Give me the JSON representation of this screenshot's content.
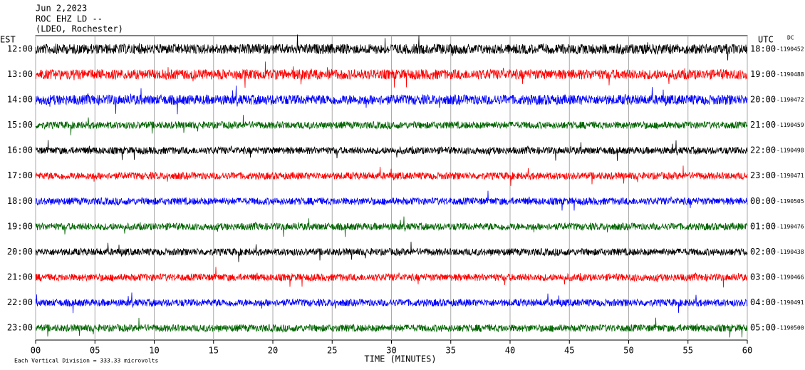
{
  "chart_data": {
    "type": "helicorder",
    "title": "Jun 2,2023",
    "subtitle": "ROC EHZ LD --",
    "station": "(LDEO, Rochester)",
    "left_axis_label": "EST",
    "right_axis_label": "UTC",
    "offset_label": "DC",
    "xlabel": "TIME (MINUTES)",
    "footnote": "Each Vertical Division =  333.33 microvolts",
    "xlim": [
      0,
      60
    ],
    "xticks": [
      {
        "value": 0,
        "label": "00"
      },
      {
        "value": 5,
        "label": "05"
      },
      {
        "value": 10,
        "label": "10"
      },
      {
        "value": 15,
        "label": "15"
      },
      {
        "value": 20,
        "label": "20"
      },
      {
        "value": 25,
        "label": "25"
      },
      {
        "value": 30,
        "label": "30"
      },
      {
        "value": 35,
        "label": "35"
      },
      {
        "value": 40,
        "label": "40"
      },
      {
        "value": 45,
        "label": "45"
      },
      {
        "value": 50,
        "label": "50"
      },
      {
        "value": 55,
        "label": "55"
      },
      {
        "value": 60,
        "label": "60"
      }
    ],
    "grid": true,
    "rows": [
      {
        "est": "12:00",
        "utc": "18:00",
        "dc": "-1190452",
        "color": "#000000"
      },
      {
        "est": "13:00",
        "utc": "19:00",
        "dc": "-1190488",
        "color": "#ff0000"
      },
      {
        "est": "14:00",
        "utc": "20:00",
        "dc": "-1190472",
        "color": "#0000ff"
      },
      {
        "est": "15:00",
        "utc": "21:00",
        "dc": "-1190459",
        "color": "#006400"
      },
      {
        "est": "16:00",
        "utc": "22:00",
        "dc": "-1190498",
        "color": "#000000"
      },
      {
        "est": "17:00",
        "utc": "23:00",
        "dc": "-1190471",
        "color": "#ff0000"
      },
      {
        "est": "18:00",
        "utc": "00:00",
        "dc": "-1190505",
        "color": "#0000ff"
      },
      {
        "est": "19:00",
        "utc": "01:00",
        "dc": "-1190476",
        "color": "#006400"
      },
      {
        "est": "20:00",
        "utc": "02:00",
        "dc": "-1190438",
        "color": "#000000"
      },
      {
        "est": "21:00",
        "utc": "03:00",
        "dc": "-1190466",
        "color": "#ff0000"
      },
      {
        "est": "22:00",
        "utc": "04:00",
        "dc": "-1190491",
        "color": "#0000ff"
      },
      {
        "est": "23:00",
        "utc": "05:00",
        "dc": "-1190500",
        "color": "#006400"
      }
    ]
  }
}
